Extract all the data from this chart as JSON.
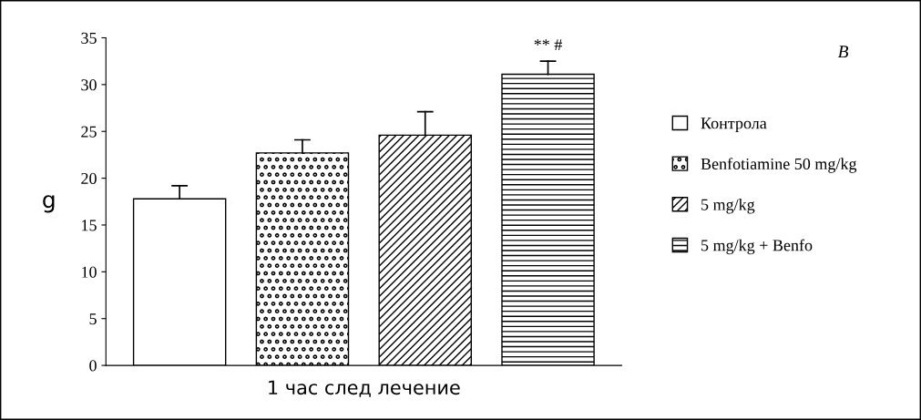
{
  "chart_data": {
    "type": "bar",
    "xlabel": "1 час след лечение",
    "ylabel": "g",
    "categories": [
      null,
      null,
      null,
      null
    ],
    "series": [
      {
        "name": "Контрола",
        "color": "#ffffff",
        "values": [
          17.8,
          null,
          null,
          null
        ],
        "errors": [
          [
            17.8,
            19.2
          ],
          null,
          null,
          null
        ]
      },
      {
        "name": "Benfotiamine 50 mg/kg",
        "color": "#000000",
        "values": [
          null,
          22.7,
          null,
          null
        ],
        "errors": [
          null,
          [
            22.7,
            24.1
          ],
          null,
          null
        ]
      },
      {
        "name": "5 mg/kg",
        "color": "#000000",
        "values": [
          null,
          null,
          24.6,
          null
        ],
        "errors": [
          null,
          null,
          [
            24.6,
            27.1
          ],
          null
        ]
      },
      {
        "name": "5 mg/kg + Benfo",
        "color": "#000000",
        "values": [
          null,
          null,
          null,
          31.1
        ],
        "errors": [
          null,
          null,
          null,
          [
            31.1,
            32.5
          ]
        ]
      }
    ],
    "ylim": [
      0,
      35
    ],
    "yticks": [
      0,
      5,
      10,
      15,
      20,
      25,
      30,
      35
    ],
    "grid": false,
    "legend": "right",
    "annotations": [
      {
        "text": "** #",
        "y": 32.5
      },
      "B"
    ]
  }
}
